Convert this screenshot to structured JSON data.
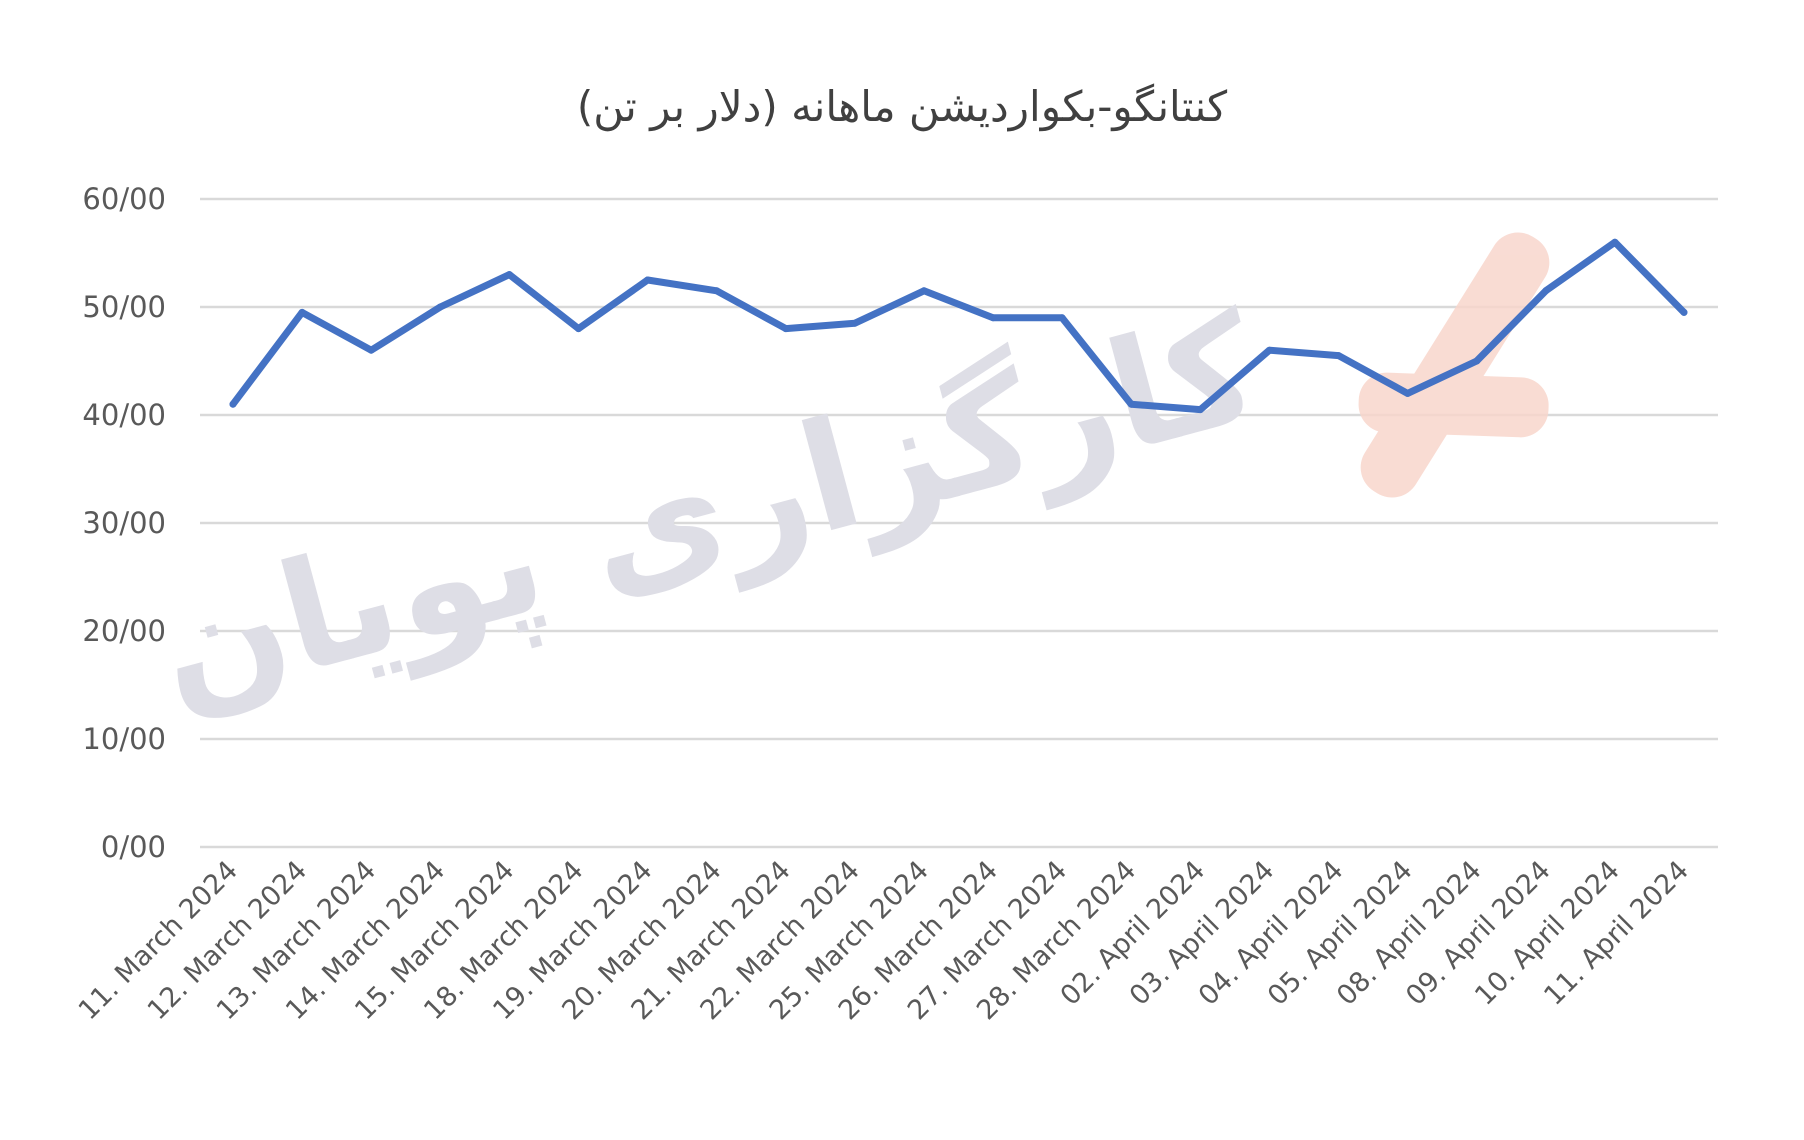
{
  "chart_data": {
    "type": "line",
    "title": "کنتانگو-بکواردیشن ماهانه (دلار بر تن)",
    "xlabel": "",
    "ylabel": "",
    "ylim": [
      0,
      60
    ],
    "yticks": [
      "0/00",
      "10/00",
      "20/00",
      "30/00",
      "40/00",
      "50/00",
      "60/00"
    ],
    "ytick_values": [
      0,
      10,
      20,
      30,
      40,
      50,
      60
    ],
    "grid": true,
    "legend": "none",
    "categories": [
      "11. March 2024",
      "12. March 2024",
      "13. March 2024",
      "14. March 2024",
      "15. March 2024",
      "18. March 2024",
      "19. March 2024",
      "20. March 2024",
      "21. March 2024",
      "22. March 2024",
      "25. March 2024",
      "26. March 2024",
      "27. March 2024",
      "28. March 2024",
      "02. April 2024",
      "03. April 2024",
      "04. April 2024",
      "05. April 2024",
      "08. April 2024",
      "09. April 2024",
      "10. April 2024",
      "11. April 2024"
    ],
    "series": [
      {
        "values": [
          41,
          49.5,
          46,
          50,
          53,
          48,
          52.5,
          51.5,
          48,
          48.5,
          51.5,
          49,
          49,
          41,
          40.5,
          46,
          45.5,
          42,
          45,
          51.5,
          56,
          49.5
        ]
      }
    ],
    "colors": {
      "line": "#4472c4",
      "grid": "#d9d9d9",
      "tick_text": "#595959",
      "title_text": "#404040"
    }
  },
  "watermark": {
    "text": "کارگزاری پویان",
    "logo": "pouyan-brokerage-logo",
    "text_color": "#dedee6",
    "logo_color": "#f8d6cc"
  }
}
